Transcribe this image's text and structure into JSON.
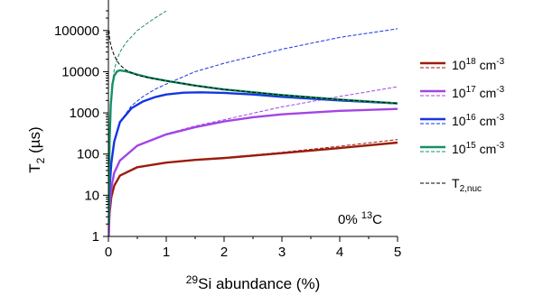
{
  "chart_data": {
    "type": "line",
    "xlabel": {
      "superscript": "29",
      "text": "Si abundance (%)"
    },
    "ylabel": {
      "text": "T",
      "subscript": "2",
      "suffix": " (µs)"
    },
    "xlim": [
      0,
      5
    ],
    "ylim": [
      1,
      300000
    ],
    "yscale": "log",
    "grid": false,
    "legend_position": "right",
    "x_ticks": [
      0,
      1,
      2,
      3,
      4,
      5
    ],
    "y_ticks": [
      1,
      10,
      100,
      1000,
      10000,
      100000
    ],
    "x_tick_labels": [
      "0",
      "1",
      "2",
      "3",
      "4",
      "5"
    ],
    "y_tick_labels": [
      "1",
      "10",
      "100",
      "1000",
      "10000",
      "100000"
    ],
    "annotation": {
      "prefix": "0% ",
      "superscript": "13",
      "suffix": "C"
    },
    "colors": {
      "1e18": "#9b1c0c",
      "1e17": "#a245e6",
      "1e16": "#1535e0",
      "1e15": "#159064",
      "nuc": "#000000"
    },
    "legend": [
      {
        "key": "1e18",
        "base": "10",
        "exp": "18",
        "unit": " cm",
        "unit_exp": "-3"
      },
      {
        "key": "1e17",
        "base": "10",
        "exp": "17",
        "unit": " cm",
        "unit_exp": "-3"
      },
      {
        "key": "1e16",
        "base": "10",
        "exp": "16",
        "unit": " cm",
        "unit_exp": "-3"
      },
      {
        "key": "1e15",
        "base": "10",
        "exp": "15",
        "unit": " cm",
        "unit_exp": "-3"
      },
      {
        "key": "nuc",
        "base": "T",
        "sub": "2,nuc"
      }
    ],
    "series": [
      {
        "key": "1e18",
        "style": "solid",
        "x": [
          0.005,
          0.01,
          0.02,
          0.05,
          0.1,
          0.2,
          0.5,
          1.0,
          1.5,
          2.0,
          3.0,
          4.0,
          5.0
        ],
        "y": [
          1,
          1.9,
          3.7,
          9,
          17,
          30,
          48,
          62,
          72,
          80,
          105,
          140,
          190
        ]
      },
      {
        "key": "1e18",
        "style": "dashed",
        "x": [
          0.005,
          0.01,
          0.02,
          0.05,
          0.1,
          0.2,
          0.5,
          1.0,
          1.5,
          2.0,
          3.0,
          4.0,
          5.0
        ],
        "y": [
          1,
          1.9,
          3.7,
          9,
          17,
          30,
          48,
          62,
          72,
          82,
          110,
          155,
          225
        ]
      },
      {
        "key": "1e17",
        "style": "solid",
        "x": [
          0.005,
          0.01,
          0.02,
          0.05,
          0.1,
          0.2,
          0.5,
          1.0,
          1.5,
          2.0,
          2.5,
          3.0,
          4.0,
          5.0
        ],
        "y": [
          1,
          2.5,
          5,
          15,
          35,
          70,
          160,
          300,
          450,
          620,
          780,
          920,
          1120,
          1250
        ]
      },
      {
        "key": "1e17",
        "style": "dashed",
        "x": [
          0.005,
          0.01,
          0.02,
          0.05,
          0.1,
          0.2,
          0.5,
          1.0,
          1.5,
          2.0,
          2.5,
          3.0,
          4.0,
          5.0
        ],
        "y": [
          1,
          2.5,
          5,
          15,
          35,
          70,
          160,
          310,
          480,
          680,
          980,
          1400,
          2500,
          4300
        ]
      },
      {
        "key": "1e16",
        "style": "solid",
        "x": [
          0.005,
          0.01,
          0.02,
          0.05,
          0.1,
          0.2,
          0.4,
          0.6,
          0.8,
          1.0,
          1.3,
          1.6,
          2.0,
          2.5,
          3.0,
          4.0,
          5.0
        ],
        "y": [
          2,
          5,
          15,
          60,
          200,
          600,
          1300,
          1900,
          2400,
          2800,
          3100,
          3150,
          3050,
          2800,
          2450,
          2000,
          1700
        ]
      },
      {
        "key": "1e16",
        "style": "dashed",
        "x": [
          0.005,
          0.01,
          0.02,
          0.05,
          0.1,
          0.2,
          0.4,
          0.6,
          0.8,
          1.0,
          1.5,
          2.0,
          3.0,
          4.0,
          5.0
        ],
        "y": [
          2,
          5,
          15,
          60,
          200,
          600,
          1500,
          2500,
          3700,
          5000,
          10000,
          16000,
          35000,
          68000,
          110000
        ]
      },
      {
        "key": "1e15",
        "style": "solid",
        "x": [
          0.005,
          0.01,
          0.02,
          0.04,
          0.07,
          0.1,
          0.15,
          0.2,
          0.3,
          0.5,
          0.7,
          1.0,
          1.5,
          2.0,
          3.0,
          4.0,
          5.0
        ],
        "y": [
          2,
          20,
          200,
          1500,
          5000,
          8000,
          10200,
          10800,
          10200,
          8500,
          7200,
          6000,
          4600,
          3700,
          2700,
          2100,
          1700
        ]
      },
      {
        "key": "1e15",
        "style": "dashed",
        "x": [
          0.005,
          0.01,
          0.02,
          0.04,
          0.07,
          0.1,
          0.15,
          0.2,
          0.3,
          0.5,
          0.7,
          0.85,
          0.95,
          1.0
        ],
        "y": [
          2,
          20,
          200,
          1500,
          5500,
          11000,
          20000,
          30000,
          50000,
          100000,
          160000,
          220000,
          270000,
          300000
        ]
      },
      {
        "key": "nuc",
        "style": "dashed",
        "x": [
          0.01,
          0.02,
          0.04,
          0.07,
          0.1,
          0.15,
          0.2,
          0.3,
          0.5,
          0.7,
          1.0,
          1.5,
          2.0,
          3.0,
          4.0,
          5.0
        ],
        "y": [
          100000,
          65000,
          45000,
          32000,
          25000,
          18000,
          14500,
          11000,
          8200,
          7100,
          6000,
          4600,
          3700,
          2700,
          2100,
          1700
        ]
      }
    ]
  }
}
